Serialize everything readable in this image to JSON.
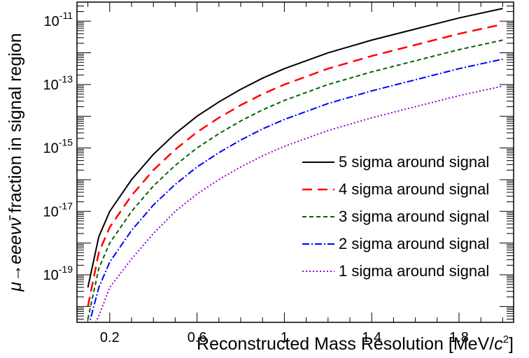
{
  "chart_data": {
    "type": "line",
    "xlabel": "Reconstructed Mass Resolution [MeV/c²]",
    "xlabel_parts": {
      "text": "Reconstructed Mass Resolution [MeV/",
      "italic": "c",
      "sup": "2",
      "close": "]"
    },
    "ylabel": "μ→eeeνν̄ fraction in signal region",
    "ylabel_parts": {
      "text1": "μ→eee",
      "nu": "ν",
      "nubar": "ν̄",
      "text2": " fraction in signal region"
    },
    "xlim": [
      0.05,
      2.05
    ],
    "ylim_log10": [
      -20.5,
      -10.4
    ],
    "y_scale": "log",
    "x_ticks": [
      "0.2",
      "0.6",
      "1",
      "1.4",
      "1.8"
    ],
    "x_tick_values": [
      0.2,
      0.6,
      1.0,
      1.4,
      1.8
    ],
    "y_ticks": [
      {
        "base": "10",
        "exp": "-11",
        "value": -11
      },
      {
        "base": "10",
        "exp": "-13",
        "value": -13
      },
      {
        "base": "10",
        "exp": "-15",
        "value": -15
      },
      {
        "base": "10",
        "exp": "-17",
        "value": -17
      },
      {
        "base": "10",
        "exp": "-19",
        "value": -19
      }
    ],
    "legend_position": "right",
    "x": [
      0.1,
      0.15,
      0.2,
      0.3,
      0.4,
      0.5,
      0.6,
      0.7,
      0.8,
      0.9,
      1.0,
      1.2,
      1.4,
      1.6,
      1.8,
      2.0
    ],
    "series": [
      {
        "name": "5 sigma around signal",
        "color": "#000000",
        "dash": "solid",
        "log10_values": [
          -19.4,
          -17.8,
          -17.0,
          -16.0,
          -15.2,
          -14.55,
          -14.0,
          -13.55,
          -13.15,
          -12.8,
          -12.5,
          -12.0,
          -11.6,
          -11.25,
          -10.9,
          -10.6
        ]
      },
      {
        "name": "4 sigma around signal",
        "color": "#ff0000",
        "dash": "dashed",
        "log10_values": [
          -20.0,
          -18.3,
          -17.5,
          -16.5,
          -15.7,
          -15.05,
          -14.5,
          -14.05,
          -13.65,
          -13.3,
          -13.0,
          -12.5,
          -12.1,
          -11.75,
          -11.4,
          -11.1
        ]
      },
      {
        "name": "3 sigma around signal",
        "color": "#006400",
        "dash": "short-dash",
        "log10_values": [
          -20.4,
          -18.8,
          -18.0,
          -17.0,
          -16.2,
          -15.55,
          -15.0,
          -14.55,
          -14.15,
          -13.8,
          -13.5,
          -13.0,
          -12.6,
          -12.25,
          -11.9,
          -11.6
        ]
      },
      {
        "name": "2 sigma around signal",
        "color": "#0000ff",
        "dash": "dash-dot",
        "log10_values": [
          -20.7,
          -19.4,
          -18.6,
          -17.6,
          -16.8,
          -16.15,
          -15.6,
          -15.15,
          -14.75,
          -14.4,
          -14.1,
          -13.6,
          -13.2,
          -12.85,
          -12.5,
          -12.2
        ]
      },
      {
        "name": "1 sigma around signal",
        "color": "#9400d3",
        "dash": "dotted",
        "log10_values": [
          -21.0,
          -20.3,
          -19.4,
          -18.5,
          -17.7,
          -17.0,
          -16.45,
          -16.0,
          -15.6,
          -15.25,
          -14.95,
          -14.45,
          -14.05,
          -13.7,
          -13.35,
          -13.05
        ]
      }
    ]
  }
}
